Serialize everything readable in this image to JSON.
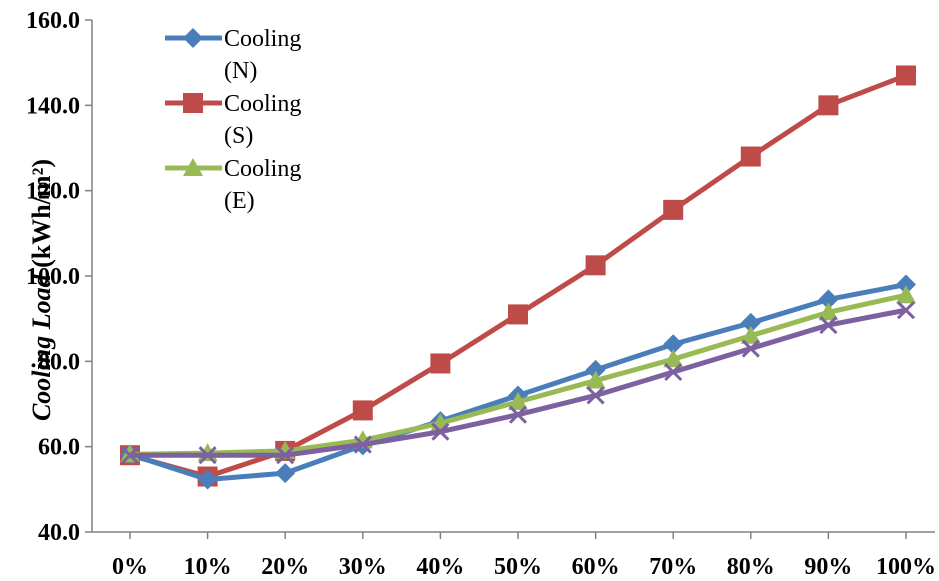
{
  "chart_data": {
    "type": "line",
    "title": "",
    "xlabel": "",
    "ylabel_italic": "Cooling Load",
    "ylabel_units": " (kWh/m²)",
    "categories": [
      "0%",
      "10%",
      "20%",
      "30%",
      "40%",
      "50%",
      "60%",
      "70%",
      "80%",
      "90%",
      "100%"
    ],
    "ylim": [
      40,
      160
    ],
    "yticks": [
      "40.0",
      "60.0",
      "80.0",
      "100.0",
      "120.0",
      "140.0",
      "160.0"
    ],
    "grid": false,
    "legend_position": "top-left",
    "series": [
      {
        "name_line1": "Cooling",
        "name_line2": "(N)",
        "color": "#4a7ebb",
        "marker": "diamond",
        "values": [
          58.2,
          52.3,
          53.8,
          60.3,
          66.0,
          72.0,
          78.0,
          84.0,
          89.0,
          94.5,
          98.0
        ]
      },
      {
        "name_line1": "Cooling",
        "name_line2": "(S)",
        "color": "#be4b48",
        "marker": "square",
        "values": [
          58.0,
          53.0,
          59.0,
          68.5,
          79.5,
          91.0,
          102.5,
          115.5,
          128.0,
          140.0,
          147.0
        ]
      },
      {
        "name_line1": "Cooling",
        "name_line2": "(E)",
        "color": "#98b954",
        "marker": "triangle",
        "values": [
          58.2,
          58.5,
          59.0,
          61.5,
          65.5,
          70.5,
          75.5,
          80.5,
          86.0,
          91.5,
          95.5
        ]
      },
      {
        "name_line1": "",
        "name_line2": "",
        "color": "#7d60a0",
        "marker": "x",
        "values": [
          58.0,
          58.0,
          58.0,
          60.5,
          63.5,
          67.5,
          72.0,
          77.5,
          83.0,
          88.5,
          92.0
        ]
      }
    ]
  }
}
